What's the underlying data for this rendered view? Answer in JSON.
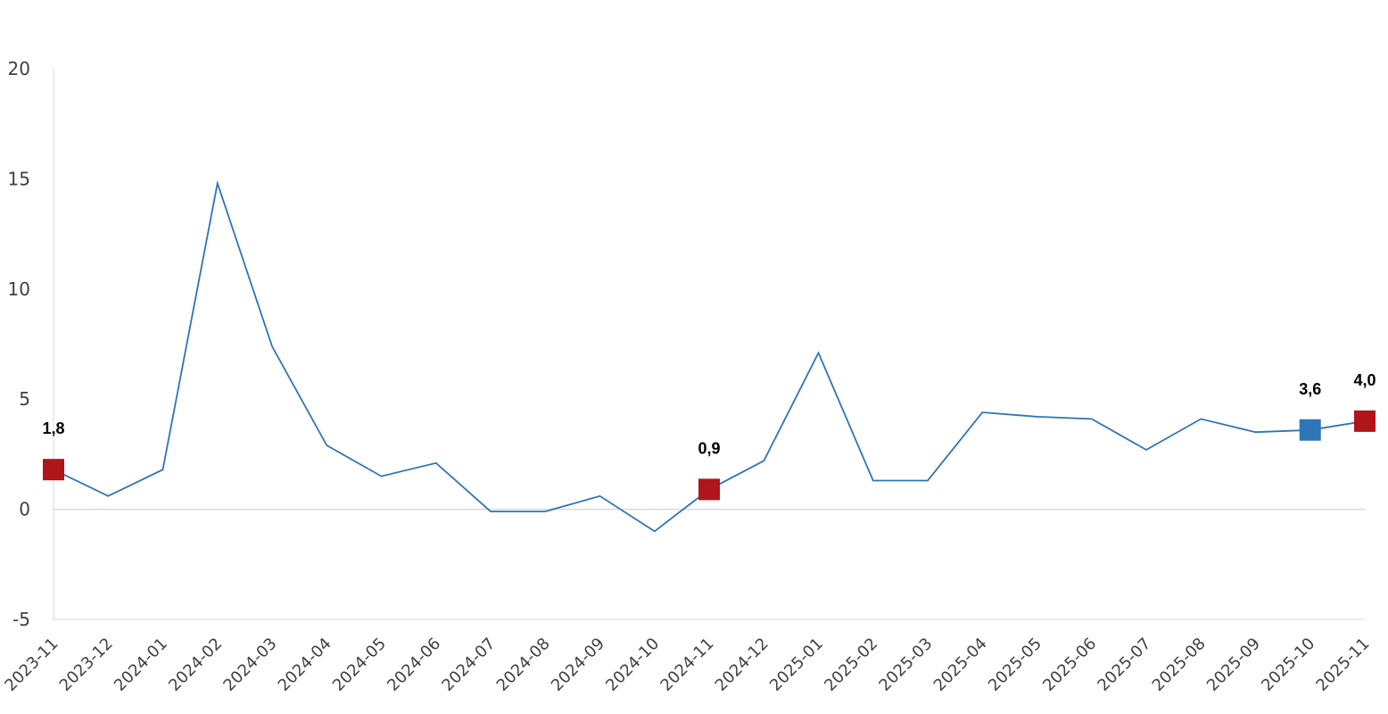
{
  "chart_data": {
    "type": "line",
    "title": "",
    "xlabel": "",
    "ylabel": "",
    "ylim": [
      -5,
      20
    ],
    "yticks": [
      -5,
      0,
      5,
      10,
      15,
      20
    ],
    "grid": false,
    "categories": [
      "2023-11",
      "2023-12",
      "2024-01",
      "2024-02",
      "2024-03",
      "2024-04",
      "2024-05",
      "2024-06",
      "2024-07",
      "2024-08",
      "2024-09",
      "2024-10",
      "2024-11",
      "2024-12",
      "2025-01",
      "2025-02",
      "2025-03",
      "2025-04",
      "2025-05",
      "2025-06",
      "2025-07",
      "2025-08",
      "2025-09",
      "2025-10",
      "2025-11"
    ],
    "series": [
      {
        "values": [
          1.8,
          0.6,
          1.8,
          14.8,
          7.4,
          2.9,
          1.5,
          2.1,
          -0.1,
          -0.1,
          0.6,
          -1.0,
          0.9,
          2.2,
          7.1,
          1.3,
          1.3,
          4.4,
          4.2,
          4.1,
          2.7,
          4.1,
          3.5,
          3.6,
          4.0
        ],
        "color": "#2e75b6"
      }
    ],
    "highlights": [
      {
        "index": 0,
        "label": "1,8",
        "color": "#b0151c"
      },
      {
        "index": 12,
        "label": "0,9",
        "color": "#b0151c"
      },
      {
        "index": 23,
        "label": "3,6",
        "color": "#2e75b6"
      },
      {
        "index": 24,
        "label": "4,0",
        "color": "#b0151c"
      }
    ],
    "axis_color": "#d9d9d9"
  }
}
